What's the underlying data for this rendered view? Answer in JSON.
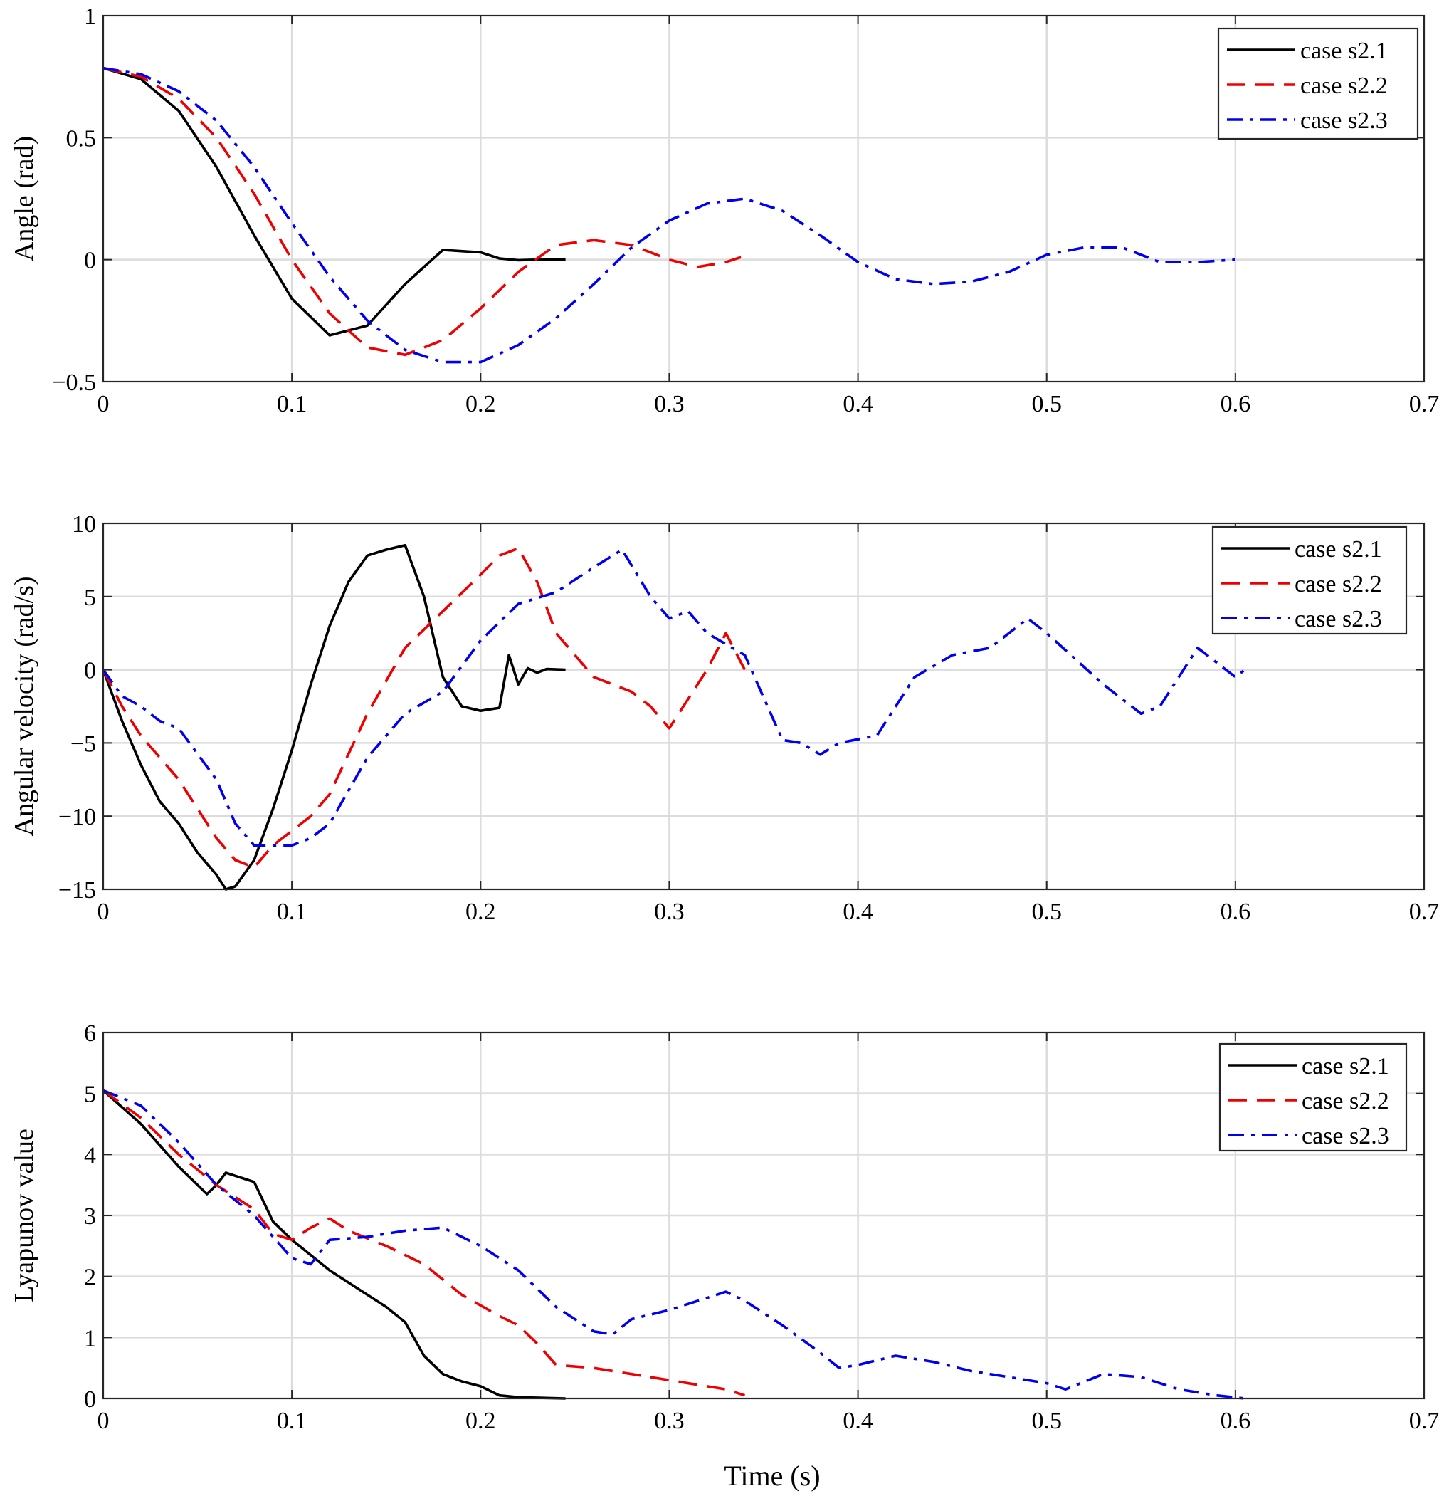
{
  "figure": {
    "xlabel": "Time (s)"
  },
  "chart_data": [
    {
      "type": "line",
      "ylabel": "Angle (rad)",
      "xlim": [
        0,
        0.7
      ],
      "ylim": [
        -0.5,
        1
      ],
      "xticks": [
        0,
        0.1,
        0.2,
        0.3,
        0.4,
        0.5,
        0.6,
        0.7
      ],
      "xtick_labels": [
        "0",
        "0.1",
        "0.2",
        "0.3",
        "0.4",
        "0.5",
        "0.6",
        "0.7"
      ],
      "yticks": [
        -0.5,
        0,
        0.5,
        1
      ],
      "ytick_labels": [
        "−0.5",
        "0",
        "0.5",
        "1"
      ],
      "grid": true,
      "legend": "top-right",
      "series": [
        {
          "name": "case s2.1",
          "color": "#000000",
          "style": "solid",
          "x": [
            0,
            0.02,
            0.04,
            0.06,
            0.08,
            0.1,
            0.12,
            0.14,
            0.16,
            0.18,
            0.2,
            0.21,
            0.22,
            0.23,
            0.245
          ],
          "y": [
            0.785,
            0.74,
            0.61,
            0.38,
            0.1,
            -0.16,
            -0.31,
            -0.27,
            -0.1,
            0.04,
            0.03,
            0.005,
            -0.002,
            0.0,
            0.0
          ]
        },
        {
          "name": "case s2.2",
          "color": "#ee0000",
          "style": "dashed",
          "x": [
            0,
            0.02,
            0.04,
            0.06,
            0.08,
            0.1,
            0.12,
            0.14,
            0.16,
            0.18,
            0.2,
            0.22,
            0.24,
            0.26,
            0.28,
            0.3,
            0.315,
            0.33,
            0.338
          ],
          "y": [
            0.785,
            0.75,
            0.66,
            0.5,
            0.27,
            0.0,
            -0.22,
            -0.36,
            -0.39,
            -0.33,
            -0.2,
            -0.05,
            0.06,
            0.08,
            0.06,
            0.0,
            -0.03,
            -0.01,
            0.01
          ]
        },
        {
          "name": "case s2.3",
          "color": "#0000ee",
          "style": "dashdot",
          "x": [
            0,
            0.02,
            0.04,
            0.06,
            0.08,
            0.1,
            0.12,
            0.14,
            0.16,
            0.18,
            0.2,
            0.22,
            0.24,
            0.26,
            0.28,
            0.3,
            0.32,
            0.34,
            0.36,
            0.38,
            0.4,
            0.42,
            0.44,
            0.46,
            0.48,
            0.5,
            0.52,
            0.54,
            0.56,
            0.58,
            0.6
          ],
          "y": [
            0.785,
            0.76,
            0.69,
            0.57,
            0.38,
            0.15,
            -0.07,
            -0.25,
            -0.37,
            -0.42,
            -0.42,
            -0.35,
            -0.24,
            -0.1,
            0.05,
            0.16,
            0.23,
            0.25,
            0.2,
            0.1,
            -0.01,
            -0.08,
            -0.1,
            -0.09,
            -0.05,
            0.02,
            0.05,
            0.05,
            -0.01,
            -0.01,
            0.0
          ]
        }
      ]
    },
    {
      "type": "line",
      "ylabel": "Angular velocity (rad/s)",
      "xlim": [
        0,
        0.7
      ],
      "ylim": [
        -15,
        10
      ],
      "xticks": [
        0,
        0.1,
        0.2,
        0.3,
        0.4,
        0.5,
        0.6,
        0.7
      ],
      "xtick_labels": [
        "0",
        "0.1",
        "0.2",
        "0.3",
        "0.4",
        "0.5",
        "0.6",
        "0.7"
      ],
      "yticks": [
        -15,
        -10,
        -5,
        0,
        5,
        10
      ],
      "ytick_labels": [
        "−15",
        "−10",
        "−5",
        "0",
        "5",
        "10"
      ],
      "grid": true,
      "legend": "top-right",
      "series": [
        {
          "name": "case s2.1",
          "color": "#000000",
          "style": "solid",
          "x": [
            0,
            0.01,
            0.02,
            0.03,
            0.04,
            0.05,
            0.06,
            0.065,
            0.07,
            0.08,
            0.09,
            0.1,
            0.11,
            0.12,
            0.13,
            0.14,
            0.15,
            0.16,
            0.17,
            0.18,
            0.19,
            0.2,
            0.21,
            0.215,
            0.22,
            0.225,
            0.23,
            0.235,
            0.245
          ],
          "y": [
            0,
            -3.5,
            -6.5,
            -9,
            -10.5,
            -12.5,
            -14,
            -15,
            -14.8,
            -13,
            -9.5,
            -5.5,
            -1,
            3,
            6,
            7.8,
            8.2,
            8.5,
            5,
            -0.5,
            -2.5,
            -2.8,
            -2.6,
            1,
            -1,
            0.1,
            -0.2,
            0.05,
            0
          ]
        },
        {
          "name": "case s2.2",
          "color": "#ee0000",
          "style": "dashed",
          "x": [
            0,
            0.01,
            0.02,
            0.04,
            0.05,
            0.06,
            0.07,
            0.08,
            0.09,
            0.1,
            0.11,
            0.12,
            0.14,
            0.16,
            0.18,
            0.2,
            0.21,
            0.22,
            0.23,
            0.24,
            0.26,
            0.28,
            0.29,
            0.3,
            0.31,
            0.32,
            0.33,
            0.34
          ],
          "y": [
            0,
            -2.5,
            -4.5,
            -7.5,
            -9.5,
            -11.5,
            -13,
            -13.5,
            -12,
            -11,
            -10,
            -8.5,
            -3,
            1.5,
            4,
            6.5,
            7.8,
            8.3,
            6,
            2.5,
            -0.5,
            -1.5,
            -2.5,
            -4,
            -2,
            0,
            2.5,
            0
          ]
        },
        {
          "name": "case s2.3",
          "color": "#0000ee",
          "style": "dashdot",
          "x": [
            0,
            0.01,
            0.02,
            0.03,
            0.04,
            0.06,
            0.07,
            0.08,
            0.09,
            0.1,
            0.11,
            0.12,
            0.14,
            0.16,
            0.18,
            0.2,
            0.22,
            0.24,
            0.26,
            0.275,
            0.29,
            0.3,
            0.31,
            0.32,
            0.34,
            0.36,
            0.37,
            0.38,
            0.39,
            0.41,
            0.43,
            0.45,
            0.47,
            0.49,
            0.5,
            0.53,
            0.55,
            0.56,
            0.58,
            0.6,
            0.605
          ],
          "y": [
            0,
            -1.8,
            -2.5,
            -3.5,
            -4,
            -7.5,
            -10.5,
            -12,
            -12,
            -12,
            -11.5,
            -10.5,
            -6,
            -3,
            -1.5,
            2,
            4.5,
            5.3,
            7,
            8.2,
            5,
            3.5,
            4,
            2.5,
            1,
            -4.8,
            -5,
            -5.8,
            -5,
            -4.5,
            -0.5,
            1,
            1.5,
            3.5,
            2.5,
            -1,
            -3,
            -2.5,
            1.5,
            -0.5,
            0
          ]
        }
      ]
    },
    {
      "type": "line",
      "ylabel": "Lyapunov value",
      "xlabel": "Time (s)",
      "xlim": [
        0,
        0.7
      ],
      "ylim": [
        0,
        6
      ],
      "xticks": [
        0,
        0.1,
        0.2,
        0.3,
        0.4,
        0.5,
        0.6,
        0.7
      ],
      "xtick_labels": [
        "0",
        "0.1",
        "0.2",
        "0.3",
        "0.4",
        "0.5",
        "0.6",
        "0.7"
      ],
      "yticks": [
        0,
        1,
        2,
        3,
        4,
        5,
        6
      ],
      "ytick_labels": [
        "0",
        "1",
        "2",
        "3",
        "4",
        "5",
        "6"
      ],
      "grid": true,
      "legend": "top-right",
      "series": [
        {
          "name": "case s2.1",
          "color": "#000000",
          "style": "solid",
          "x": [
            0,
            0.02,
            0.04,
            0.05,
            0.055,
            0.06,
            0.065,
            0.07,
            0.075,
            0.08,
            0.09,
            0.1,
            0.12,
            0.14,
            0.15,
            0.16,
            0.17,
            0.18,
            0.19,
            0.2,
            0.21,
            0.22,
            0.245
          ],
          "y": [
            5.05,
            4.5,
            3.8,
            3.5,
            3.35,
            3.5,
            3.7,
            3.65,
            3.6,
            3.55,
            2.9,
            2.6,
            2.1,
            1.7,
            1.5,
            1.25,
            0.7,
            0.4,
            0.28,
            0.2,
            0.05,
            0.02,
            0.0
          ]
        },
        {
          "name": "case s2.2",
          "color": "#ee0000",
          "style": "dashed",
          "x": [
            0,
            0.02,
            0.04,
            0.06,
            0.07,
            0.08,
            0.09,
            0.1,
            0.11,
            0.12,
            0.13,
            0.15,
            0.17,
            0.19,
            0.21,
            0.22,
            0.23,
            0.24,
            0.26,
            0.28,
            0.3,
            0.32,
            0.33,
            0.34
          ],
          "y": [
            5.05,
            4.6,
            4.0,
            3.5,
            3.3,
            3.1,
            2.7,
            2.6,
            2.8,
            2.95,
            2.75,
            2.5,
            2.2,
            1.7,
            1.35,
            1.2,
            0.9,
            0.55,
            0.5,
            0.4,
            0.3,
            0.2,
            0.15,
            0.05
          ]
        },
        {
          "name": "case s2.3",
          "color": "#0000ee",
          "style": "dashdot",
          "x": [
            0,
            0.02,
            0.04,
            0.06,
            0.08,
            0.1,
            0.11,
            0.12,
            0.14,
            0.16,
            0.18,
            0.2,
            0.22,
            0.24,
            0.26,
            0.27,
            0.28,
            0.3,
            0.32,
            0.33,
            0.34,
            0.36,
            0.38,
            0.39,
            0.4,
            0.42,
            0.44,
            0.46,
            0.48,
            0.5,
            0.51,
            0.53,
            0.55,
            0.57,
            0.59,
            0.605
          ],
          "y": [
            5.05,
            4.8,
            4.2,
            3.5,
            3.0,
            2.3,
            2.2,
            2.6,
            2.65,
            2.75,
            2.8,
            2.5,
            2.1,
            1.5,
            1.1,
            1.05,
            1.3,
            1.45,
            1.65,
            1.75,
            1.6,
            1.2,
            0.75,
            0.5,
            0.55,
            0.7,
            0.6,
            0.45,
            0.35,
            0.25,
            0.15,
            0.4,
            0.35,
            0.15,
            0.05,
            0.0
          ]
        }
      ]
    }
  ]
}
